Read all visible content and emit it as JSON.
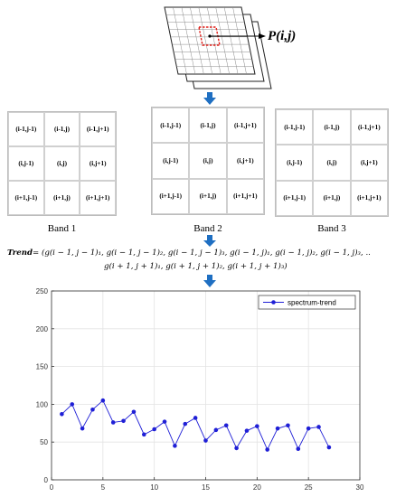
{
  "pixel_label": "P(i,j)",
  "bands": [
    {
      "label": "Band 1",
      "cells": [
        "(i-1,j-1)",
        "(i-1,j)",
        "(i-1,j+1)",
        "(i,j-1)",
        "(i,j)",
        "(i,j+1)",
        "(i+1,j-1)",
        "(i+1,j)",
        "(i+1,j+1)"
      ]
    },
    {
      "label": "Band 2",
      "cells": [
        "(i-1,j-1)",
        "(i-1,j)",
        "(i-1,j+1)",
        "(i,j-1)",
        "(i,j)",
        "(i,j+1)",
        "(i+1,j-1)",
        "(i+1,j)",
        "(i+1,j+1)"
      ]
    },
    {
      "label": "Band 3",
      "cells": [
        "(i-1,j-1)",
        "(i-1,j)",
        "(i-1,j+1)",
        "(i,j-1)",
        "(i,j)",
        "(i,j+1)",
        "(i+1,j-1)",
        "(i+1,j)",
        "(i+1,j+1)"
      ]
    }
  ],
  "trend": {
    "lhs": "Trend",
    "line1": "= (g(i − 1, j − 1)₁, g(i − 1, j − 1)₂, g(i − 1, j − 1)₃, g(i − 1, j)₁, g(i − 1, j)₂, g(i − 1, j)₃, ..",
    "line2": "g(i + 1, j + 1)₁, g(i + 1, j + 1)₂, g(i + 1, j + 1)₃)"
  },
  "colors": {
    "series": "#1f1fd6",
    "arrow": "#1f6fc2",
    "red_box": "#e0201a"
  },
  "chart_data": {
    "type": "line",
    "x": [
      1,
      2,
      3,
      4,
      5,
      6,
      7,
      8,
      9,
      10,
      11,
      12,
      13,
      14,
      15,
      16,
      17,
      18,
      19,
      20,
      21,
      22,
      23,
      24,
      25,
      26,
      27
    ],
    "series": [
      {
        "name": "spectrum-trend",
        "values": [
          87,
          100,
          68,
          93,
          105,
          76,
          78,
          90,
          60,
          67,
          77,
          45,
          74,
          82,
          52,
          66,
          72,
          42,
          65,
          71,
          40,
          68,
          72,
          41,
          68,
          70,
          43
        ]
      }
    ],
    "xlim": [
      0,
      30
    ],
    "ylim": [
      0,
      250
    ],
    "xticks": [
      0,
      5,
      10,
      15,
      20,
      25,
      30
    ],
    "yticks": [
      0,
      50,
      100,
      150,
      200,
      250
    ],
    "legend": "top-right",
    "grid": true
  }
}
